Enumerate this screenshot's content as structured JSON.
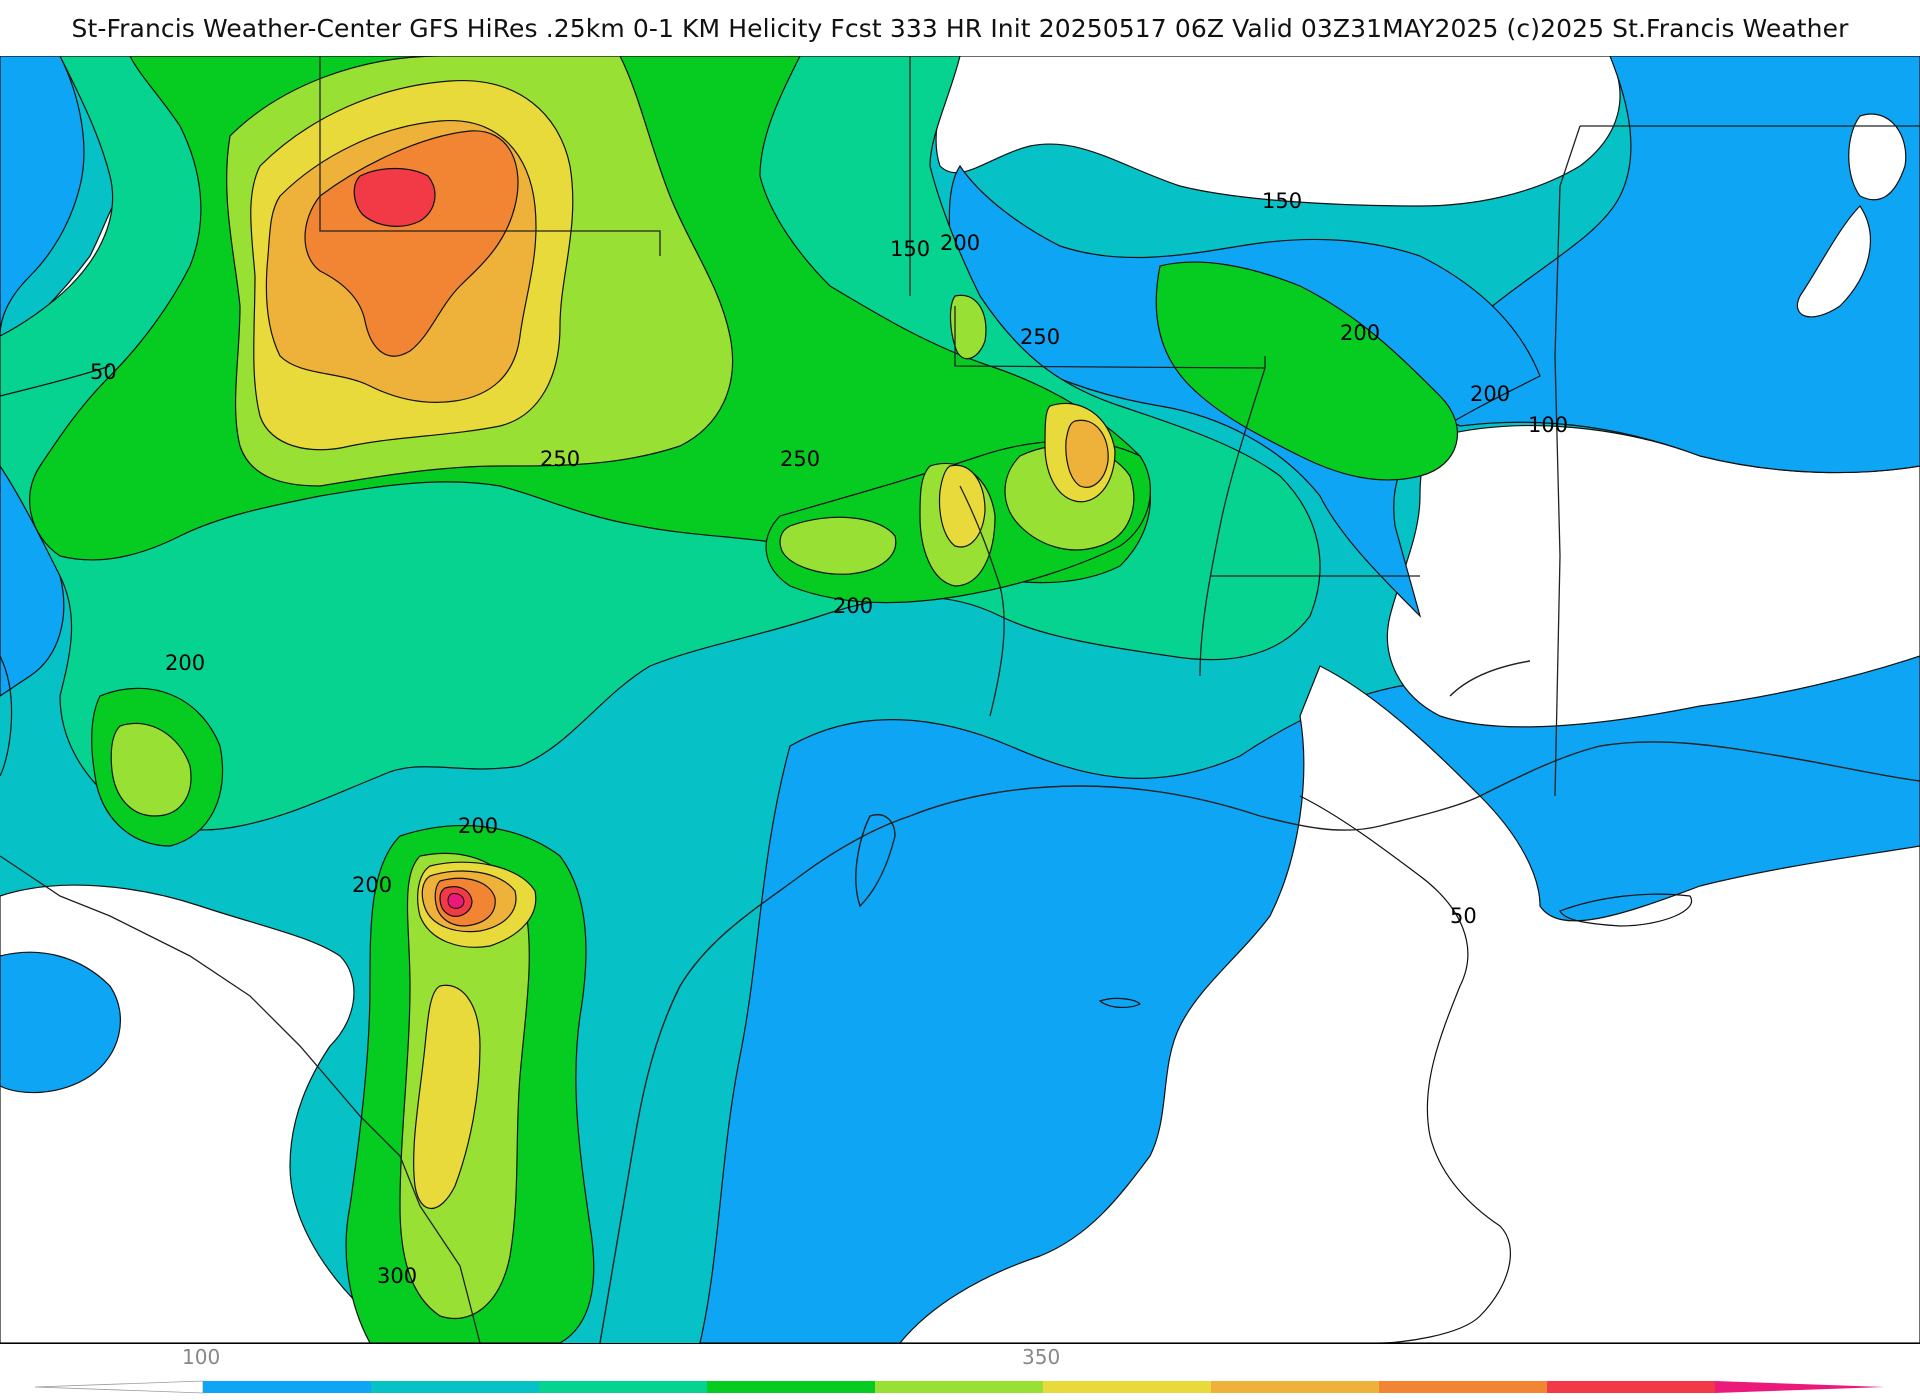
{
  "title": "St-Francis Weather-Center GFS HiRes .25km 0-1 KM Helicity Fcst 333 HR Init 20250517 06Z  Valid 03Z31MAY2025    (c)2025 St.Francis Weather",
  "map": {
    "contour_labels": [
      "50",
      "150",
      "200",
      "150",
      "250",
      "250",
      "200",
      "250",
      "200",
      "200",
      "100",
      "200",
      "200",
      "200",
      "300",
      "50"
    ]
  },
  "colorbar": {
    "tick_labels": [
      "100",
      "350"
    ],
    "colors": [
      "#ffffff",
      "#0ea5f5",
      "#06c2c6",
      "#06d390",
      "#06cc22",
      "#99e035",
      "#e9da3c",
      "#eeb23a",
      "#f18533",
      "#f23a46",
      "#eb1a7a"
    ]
  }
}
